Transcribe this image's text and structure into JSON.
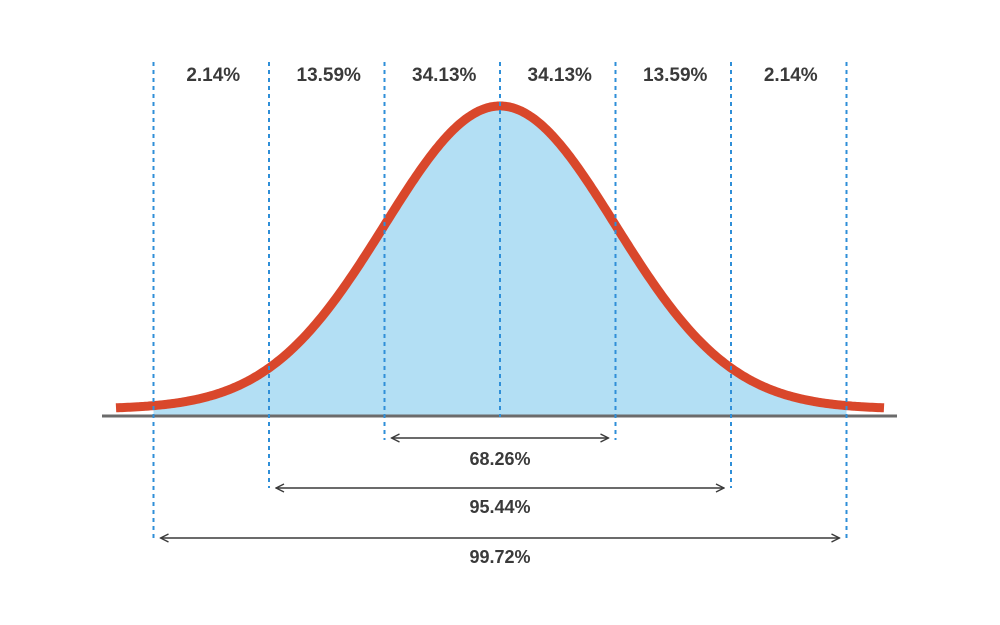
{
  "chart_data": {
    "type": "area",
    "x_sigma_boundaries": [
      -3,
      -2,
      -1,
      0,
      1,
      2,
      3
    ],
    "segments": [
      {
        "from": -3,
        "to": -2,
        "label": "2.14%",
        "value": 2.14
      },
      {
        "from": -2,
        "to": -1,
        "label": "13.59%",
        "value": 13.59
      },
      {
        "from": -1,
        "to": 0,
        "label": "34.13%",
        "value": 34.13
      },
      {
        "from": 0,
        "to": 1,
        "label": "34.13%",
        "value": 34.13
      },
      {
        "from": 1,
        "to": 2,
        "label": "13.59%",
        "value": 13.59
      },
      {
        "from": 2,
        "to": 3,
        "label": "2.14%",
        "value": 2.14
      }
    ],
    "ranges": [
      {
        "from": -1,
        "to": 1,
        "label": "68.26%",
        "value": 68.26
      },
      {
        "from": -2,
        "to": 2,
        "label": "95.44%",
        "value": 95.44
      },
      {
        "from": -3,
        "to": 3,
        "label": "99.72%",
        "value": 99.72
      }
    ],
    "colors": {
      "curve": "#d9472b",
      "fill": "#b3dff4",
      "divider": "#2f8fd8",
      "axis": "#6b6b6b",
      "arrow": "#3a3a3a",
      "text": "#3a3a3a"
    }
  }
}
